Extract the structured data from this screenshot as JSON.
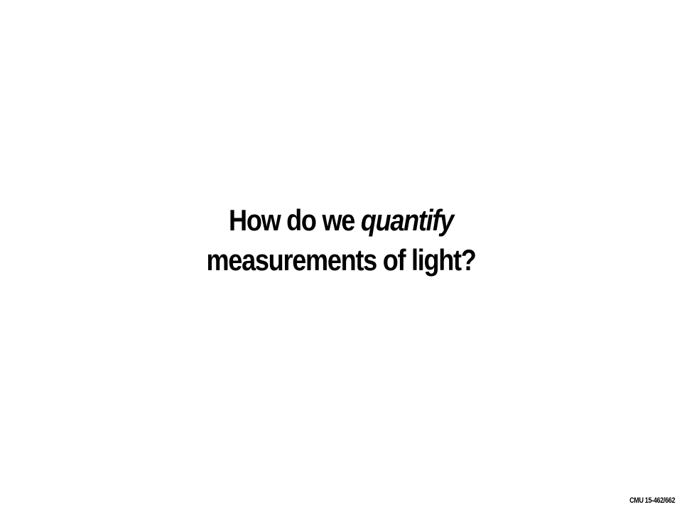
{
  "slide": {
    "title_line1_prefix": "How do we",
    "title_line1_emphasis": "quantify",
    "title_line2": "measurements of light?"
  },
  "footer": {
    "course": "CMU 15-462/662"
  }
}
